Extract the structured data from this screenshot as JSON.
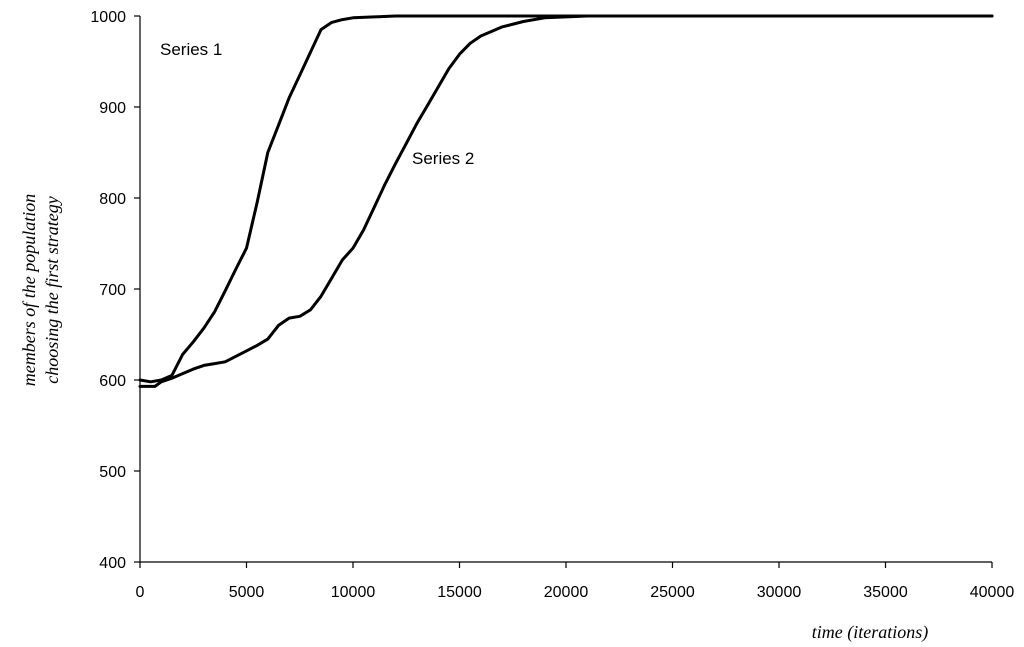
{
  "chart_data": {
    "type": "line",
    "title": "",
    "xlabel": "time (iterations)",
    "ylabel_lines": [
      "members of the population",
      "choosing the first strategy"
    ],
    "xlim": [
      0,
      40000
    ],
    "ylim": [
      400,
      1000
    ],
    "xticks": [
      0,
      5000,
      10000,
      15000,
      20000,
      25000,
      30000,
      35000,
      40000
    ],
    "yticks": [
      400,
      500,
      600,
      700,
      800,
      900,
      1000
    ],
    "grid": false,
    "legend": "inline labels",
    "series": [
      {
        "name": "Series 1",
        "x": [
          0,
          500,
          1000,
          1500,
          2000,
          2500,
          3000,
          3500,
          4000,
          4500,
          5000,
          5500,
          6000,
          6500,
          7000,
          7500,
          8000,
          8500,
          9000,
          9500,
          10000,
          11000,
          12000,
          15000,
          20000,
          40000
        ],
        "values": [
          600,
          598,
          600,
          605,
          628,
          642,
          657,
          675,
          698,
          722,
          745,
          795,
          850,
          880,
          910,
          935,
          960,
          985,
          993,
          996,
          998,
          999,
          1000,
          1000,
          1000,
          1000
        ]
      },
      {
        "name": "Series 2",
        "x": [
          0,
          700,
          1000,
          1500,
          2000,
          2500,
          3000,
          3500,
          4000,
          4500,
          5000,
          5500,
          6000,
          6500,
          7000,
          7500,
          8000,
          8500,
          9000,
          9500,
          10000,
          10500,
          11000,
          11500,
          12000,
          12500,
          13000,
          13500,
          14000,
          14500,
          15000,
          15500,
          16000,
          16500,
          17000,
          18000,
          19000,
          20000,
          21000,
          40000
        ],
        "values": [
          593,
          593,
          598,
          602,
          607,
          612,
          616,
          618,
          620,
          626,
          632,
          638,
          645,
          660,
          668,
          670,
          677,
          692,
          712,
          732,
          745,
          765,
          790,
          815,
          838,
          860,
          882,
          902,
          922,
          942,
          958,
          970,
          978,
          983,
          988,
          994,
          998,
          999,
          1000,
          1000
        ]
      }
    ]
  }
}
